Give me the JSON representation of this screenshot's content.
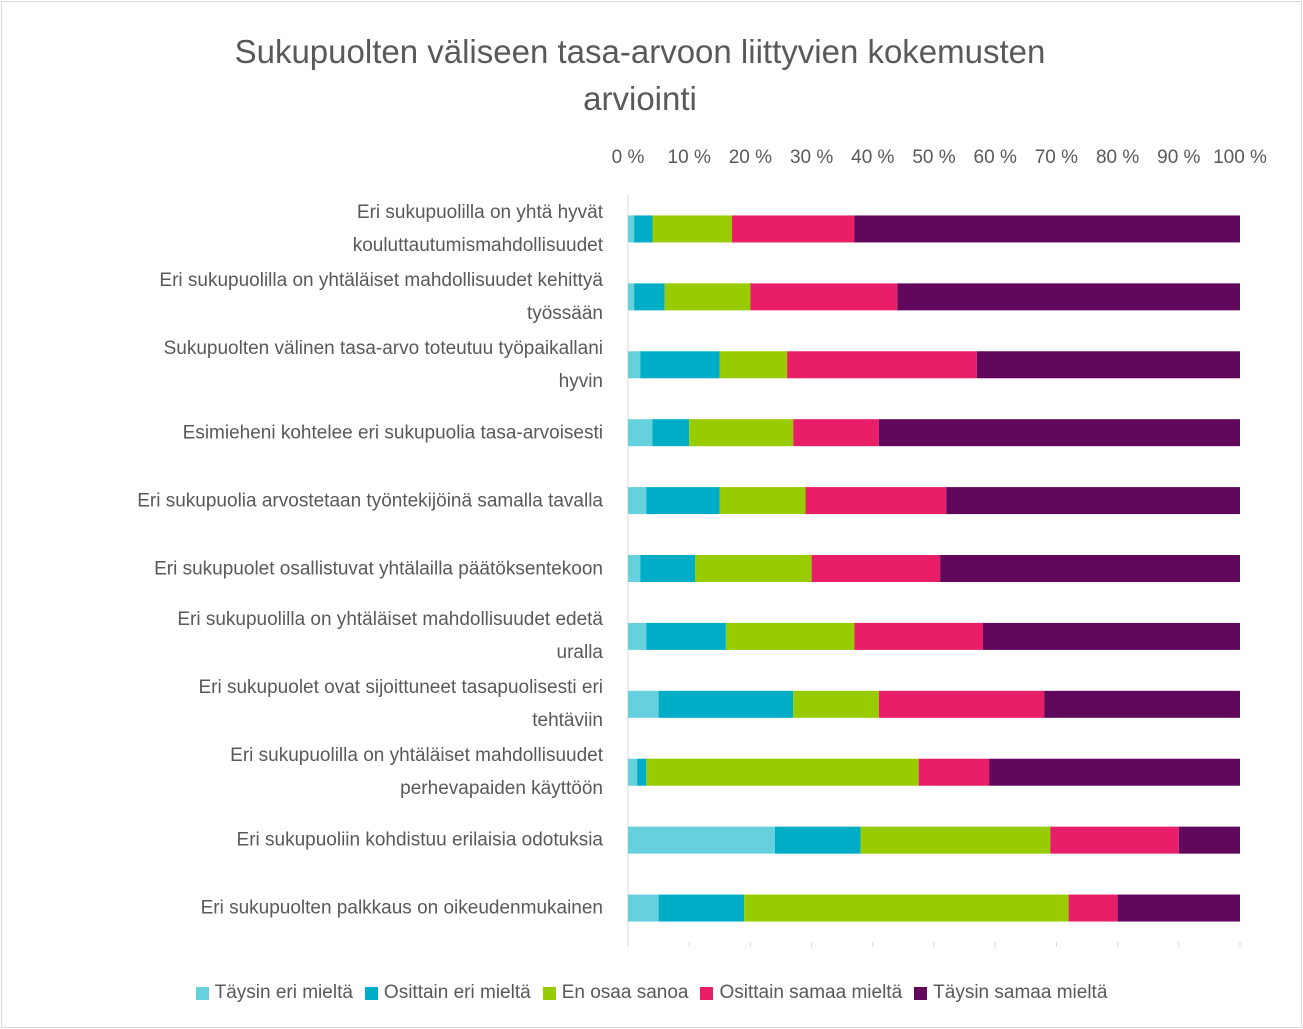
{
  "chart_data": {
    "type": "bar",
    "orientation": "horizontal",
    "stacked": true,
    "title": "Sukupuolten väliseen tasa-arvoon liittyvien kokemusten\narviointi",
    "categories": [
      "Eri sukupuolilla on yhtä hyvät\nkouluttautumismahdollisuudet",
      "Eri sukupuolilla on yhtäläiset mahdollisuudet kehittyä\ntyössään",
      "Sukupuolten välinen tasa-arvo toteutuu työpaikallani\nhyvin",
      "Esimieheni kohtelee eri sukupuolia tasa-arvoisesti",
      "Eri sukupuolia arvostetaan työntekijöinä samalla tavalla",
      "Eri sukupuolet osallistuvat yhtälailla päätöksentekoon",
      "Eri sukupuolilla on yhtäläiset mahdollisuudet edetä\nuralla",
      "Eri sukupuolet ovat sijoittuneet tasapuolisesti eri\ntehtäviin",
      "Eri sukupuolilla on yhtäläiset mahdollisuudet\nperhevapaiden käyttöön",
      "Eri sukupuoliin kohdistuu erilaisia odotuksia",
      "Eri sukupuolten palkkaus on oikeudenmukainen"
    ],
    "series": [
      {
        "name": "Täysin eri mieltä",
        "color": "#66d0dc",
        "values": [
          1,
          1,
          2,
          4,
          3,
          2,
          3,
          5,
          1.5,
          24,
          5
        ]
      },
      {
        "name": "Osittain eri mieltä",
        "color": "#00adc6",
        "values": [
          3,
          5,
          13,
          6,
          12,
          9,
          13,
          22,
          1.5,
          14,
          14
        ]
      },
      {
        "name": "En osaa sanoa",
        "color": "#99cc00",
        "values": [
          13,
          14,
          11,
          17,
          14,
          19,
          21,
          14,
          44.5,
          31,
          53
        ]
      },
      {
        "name": "Osittain samaa mieltä",
        "color": "#e91e68",
        "values": [
          20,
          24,
          31,
          14,
          23,
          21,
          21,
          27,
          11.5,
          21,
          8
        ]
      },
      {
        "name": "Täysin samaa mieltä",
        "color": "#62085c",
        "values": [
          63,
          56,
          43,
          59,
          48,
          49,
          42,
          32,
          41,
          10,
          20
        ]
      }
    ],
    "xlim": [
      0,
      100
    ],
    "xticks": [
      {
        "value": 0,
        "label": "0 %"
      },
      {
        "value": 10,
        "label": "10 %"
      },
      {
        "value": 20,
        "label": "20 %"
      },
      {
        "value": 30,
        "label": "30 %"
      },
      {
        "value": 40,
        "label": "40 %"
      },
      {
        "value": 50,
        "label": "50 %"
      },
      {
        "value": 60,
        "label": "60 %"
      },
      {
        "value": 70,
        "label": "70 %"
      },
      {
        "value": 80,
        "label": "80 %"
      },
      {
        "value": 90,
        "label": "90 %"
      },
      {
        "value": 100,
        "label": "100 %"
      }
    ],
    "legend": "bottom"
  }
}
